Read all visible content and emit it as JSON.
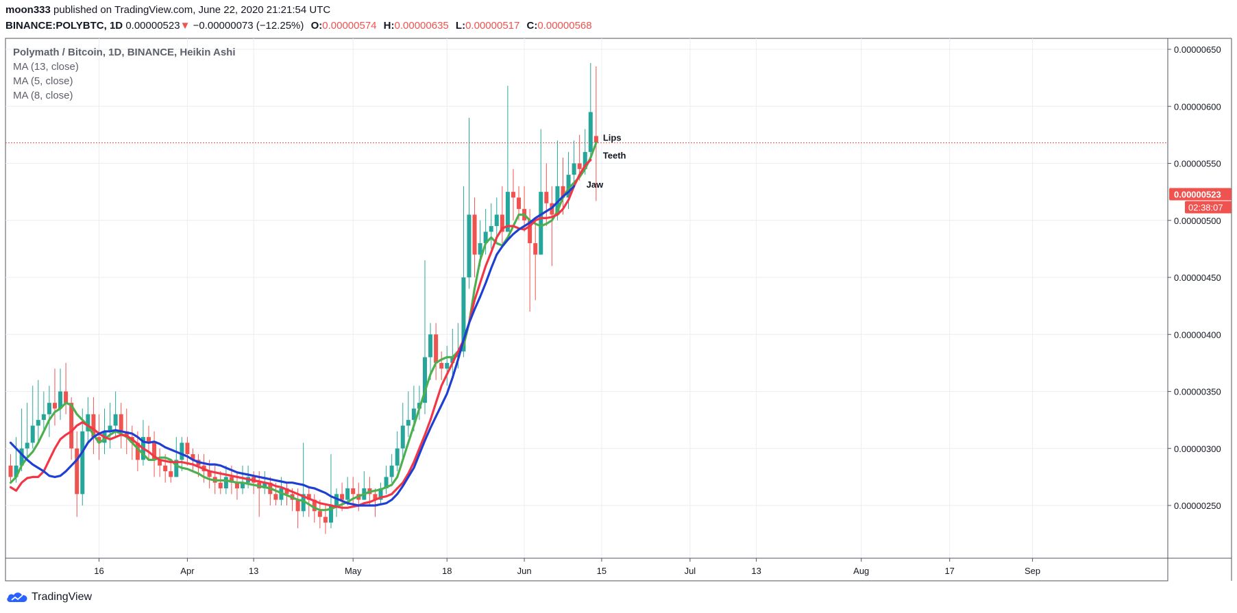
{
  "header": {
    "author": "moon333",
    "published": " published on TradingView.com, June 22, 2020 21:21:54 UTC",
    "symbol": "BINANCE:POLYBTC, 1D",
    "last": "0.00000523",
    "arrow": "▼",
    "change": "−0.00000073 (−12.25%)",
    "o_label": "O:",
    "o": "0.00000574",
    "h_label": "H:",
    "h": "0.00000635",
    "l_label": "L:",
    "l": "0.00000517",
    "c_label": "C:",
    "c": "0.00000568"
  },
  "legend": {
    "main": "Polymath / Bitcoin, 1D, BINANCE, Heikin Ashi",
    "ma13": "MA (13, close)",
    "ma5": "MA (5, close)",
    "ma8": "MA (8, close)"
  },
  "branding": "TradingView",
  "colors": {
    "up": "#26a69a",
    "down": "#ef5350",
    "lips": "#4caf50",
    "teeth": "#f23645",
    "jaw": "#1e3fd1",
    "grid": "#e9eef2",
    "axis": "#50535e"
  },
  "chart_data": {
    "type": "candlestick",
    "style": "Heikin Ashi",
    "title": "Polymath / Bitcoin, 1D, BINANCE, Heikin Ashi",
    "y_range": [
      2e-06,
      6.6e-06
    ],
    "y_ticks": [
      "0.00000650",
      "0.00000600",
      "0.00000550",
      "0.00000500",
      "0.00000450",
      "0.00000400",
      "0.00000350",
      "0.00000300",
      "0.00000250"
    ],
    "y_tick_values": [
      6.5,
      6.0,
      5.5,
      5.0,
      4.5,
      4.0,
      3.5,
      3.0,
      2.5
    ],
    "x_ticks": [
      {
        "label": "16",
        "day": 16
      },
      {
        "label": "Apr",
        "day": 32
      },
      {
        "label": "13",
        "day": 44
      },
      {
        "label": "May",
        "day": 62
      },
      {
        "label": "18",
        "day": 79
      },
      {
        "label": "Jun",
        "day": 93
      },
      {
        "label": "15",
        "day": 107
      },
      {
        "label": "Jul",
        "day": 123
      },
      {
        "label": "13",
        "day": 135
      },
      {
        "label": "Aug",
        "day": 154
      },
      {
        "label": "17",
        "day": 170
      },
      {
        "label": "Sep",
        "day": 185
      }
    ],
    "price_line": 5.68,
    "last_price_label": "0.00000523",
    "countdown_label": "02:38:07",
    "unit": "1e-6 BTC",
    "candles": [
      [
        2.85,
        2.75,
        2.95,
        2.7
      ],
      [
        2.75,
        2.85,
        3.1,
        2.7
      ],
      [
        2.85,
        3.0,
        3.35,
        2.8
      ],
      [
        3.0,
        3.05,
        3.4,
        2.9
      ],
      [
        3.05,
        3.2,
        3.55,
        3.0
      ],
      [
        3.2,
        3.25,
        3.6,
        3.05
      ],
      [
        3.25,
        3.3,
        3.5,
        3.15
      ],
      [
        3.3,
        3.4,
        3.55,
        3.1
      ],
      [
        3.4,
        3.35,
        3.7,
        3.2
      ],
      [
        3.35,
        3.5,
        3.7,
        3.25
      ],
      [
        3.5,
        3.4,
        3.75,
        3.3
      ],
      [
        3.4,
        3.0,
        3.45,
        2.9
      ],
      [
        3.0,
        2.6,
        3.15,
        2.4
      ],
      [
        2.6,
        3.15,
        3.35,
        2.5
      ],
      [
        3.15,
        3.3,
        3.45,
        3.05
      ],
      [
        3.3,
        3.1,
        3.45,
        2.95
      ],
      [
        3.1,
        3.05,
        3.3,
        2.9
      ],
      [
        3.05,
        3.15,
        3.35,
        2.95
      ],
      [
        3.15,
        3.2,
        3.4,
        3.0
      ],
      [
        3.2,
        3.3,
        3.5,
        3.1
      ],
      [
        3.3,
        3.15,
        3.4,
        3.0
      ],
      [
        3.15,
        3.1,
        3.35,
        2.95
      ],
      [
        3.1,
        3.05,
        3.2,
        2.9
      ],
      [
        3.05,
        2.9,
        3.15,
        2.8
      ],
      [
        2.9,
        3.1,
        3.25,
        2.85
      ],
      [
        3.1,
        3.05,
        3.2,
        2.9
      ],
      [
        3.05,
        2.9,
        3.15,
        2.75
      ],
      [
        2.9,
        2.85,
        3.0,
        2.75
      ],
      [
        2.85,
        2.8,
        2.95,
        2.7
      ],
      [
        2.8,
        2.75,
        2.9,
        2.7
      ],
      [
        2.75,
        2.9,
        3.1,
        2.75
      ],
      [
        2.9,
        3.05,
        3.1,
        2.8
      ],
      [
        3.05,
        2.95,
        3.1,
        2.85
      ],
      [
        2.95,
        2.9,
        3.0,
        2.8
      ],
      [
        2.9,
        2.85,
        2.95,
        2.75
      ],
      [
        2.85,
        2.8,
        2.95,
        2.7
      ],
      [
        2.8,
        2.75,
        2.9,
        2.65
      ],
      [
        2.75,
        2.7,
        2.85,
        2.6
      ],
      [
        2.7,
        2.65,
        2.8,
        2.6
      ],
      [
        2.65,
        2.75,
        2.85,
        2.6
      ],
      [
        2.75,
        2.7,
        2.85,
        2.6
      ],
      [
        2.7,
        2.65,
        2.8,
        2.55
      ],
      [
        2.65,
        2.7,
        2.85,
        2.6
      ],
      [
        2.7,
        2.75,
        2.85,
        2.65
      ],
      [
        2.75,
        2.7,
        2.8,
        2.6
      ],
      [
        2.7,
        2.65,
        2.8,
        2.4
      ],
      [
        2.65,
        2.7,
        2.8,
        2.6
      ],
      [
        2.7,
        2.6,
        2.75,
        2.5
      ],
      [
        2.6,
        2.55,
        2.7,
        2.5
      ],
      [
        2.55,
        2.65,
        2.75,
        2.5
      ],
      [
        2.65,
        2.6,
        2.7,
        2.5
      ],
      [
        2.6,
        2.55,
        2.65,
        2.45
      ],
      [
        2.55,
        2.45,
        2.65,
        2.3
      ],
      [
        2.45,
        2.6,
        3.05,
        2.4
      ],
      [
        2.6,
        2.55,
        2.65,
        2.4
      ],
      [
        2.55,
        2.45,
        2.6,
        2.35
      ],
      [
        2.45,
        2.4,
        2.55,
        2.3
      ],
      [
        2.4,
        2.35,
        2.5,
        2.25
      ],
      [
        2.35,
        2.5,
        2.95,
        2.3
      ],
      [
        2.5,
        2.6,
        2.65,
        2.4
      ],
      [
        2.6,
        2.55,
        2.7,
        2.45
      ],
      [
        2.55,
        2.65,
        2.75,
        2.5
      ],
      [
        2.65,
        2.6,
        2.75,
        2.5
      ],
      [
        2.6,
        2.55,
        2.7,
        2.45
      ],
      [
        2.55,
        2.65,
        2.8,
        2.55
      ],
      [
        2.65,
        2.6,
        2.75,
        2.5
      ],
      [
        2.6,
        2.55,
        2.65,
        2.4
      ],
      [
        2.55,
        2.65,
        2.7,
        2.5
      ],
      [
        2.65,
        2.75,
        2.85,
        2.6
      ],
      [
        2.75,
        2.85,
        2.95,
        2.7
      ],
      [
        2.85,
        3.0,
        3.15,
        2.8
      ],
      [
        3.0,
        3.2,
        3.4,
        2.9
      ],
      [
        3.2,
        3.25,
        3.5,
        3.1
      ],
      [
        3.25,
        3.35,
        3.55,
        3.15
      ],
      [
        3.35,
        3.4,
        3.55,
        3.25
      ],
      [
        3.4,
        3.8,
        4.65,
        3.3
      ],
      [
        3.8,
        4.0,
        4.1,
        3.6
      ],
      [
        4.0,
        3.75,
        4.1,
        3.6
      ],
      [
        3.75,
        3.7,
        3.85,
        3.6
      ],
      [
        3.7,
        3.75,
        3.9,
        3.55
      ],
      [
        3.75,
        3.8,
        4.05,
        3.65
      ],
      [
        3.8,
        3.85,
        4.1,
        3.7
      ],
      [
        3.85,
        4.5,
        5.3,
        3.8
      ],
      [
        4.5,
        5.05,
        5.9,
        4.4
      ],
      [
        5.05,
        4.7,
        5.2,
        4.5
      ],
      [
        4.7,
        4.8,
        5.0,
        4.6
      ],
      [
        4.8,
        4.9,
        5.1,
        4.7
      ],
      [
        4.9,
        4.95,
        5.15,
        4.75
      ],
      [
        4.95,
        5.05,
        5.2,
        4.8
      ],
      [
        5.05,
        4.9,
        5.3,
        4.8
      ],
      [
        4.9,
        5.25,
        6.18,
        4.9
      ],
      [
        5.25,
        5.2,
        5.45,
        5.0
      ],
      [
        5.2,
        5.1,
        5.3,
        5.0
      ],
      [
        5.1,
        5.0,
        5.3,
        4.9
      ],
      [
        5.0,
        4.8,
        5.1,
        4.2
      ],
      [
        4.8,
        4.7,
        5.0,
        4.3
      ],
      [
        4.7,
        5.25,
        5.8,
        4.7
      ],
      [
        5.25,
        5.15,
        5.5,
        4.95
      ],
      [
        5.15,
        5.05,
        5.3,
        4.6
      ],
      [
        5.05,
        5.3,
        5.7,
        5.0
      ],
      [
        5.3,
        5.2,
        5.55,
        5.05
      ],
      [
        5.2,
        5.4,
        5.6,
        5.1
      ],
      [
        5.4,
        5.5,
        5.7,
        5.3
      ],
      [
        5.5,
        5.45,
        5.75,
        5.35
      ],
      [
        5.45,
        5.6,
        5.8,
        5.4
      ],
      [
        5.6,
        5.95,
        6.38,
        5.55
      ],
      [
        5.74,
        5.68,
        6.35,
        5.17
      ]
    ],
    "series": [
      {
        "name": "Lips",
        "ma": "MA (5, close)",
        "color": "#4caf50",
        "values": [
          2.7,
          2.75,
          2.85,
          2.92,
          2.97,
          3.05,
          3.15,
          3.25,
          3.32,
          3.35,
          3.4,
          3.38,
          3.3,
          3.25,
          3.2,
          3.12,
          3.05,
          3.08,
          3.12,
          3.15,
          3.13,
          3.1,
          3.05,
          3.0,
          2.95,
          2.9,
          2.9,
          2.92,
          2.92,
          2.9,
          2.85,
          2.83,
          2.82,
          2.8,
          2.78,
          2.75,
          2.73,
          2.72,
          2.72,
          2.72,
          2.71,
          2.7,
          2.7,
          2.69,
          2.68,
          2.67,
          2.66,
          2.65,
          2.63,
          2.61,
          2.59,
          2.57,
          2.55,
          2.54,
          2.51,
          2.48,
          2.46,
          2.46,
          2.47,
          2.49,
          2.51,
          2.53,
          2.56,
          2.58,
          2.6,
          2.62,
          2.63,
          2.64,
          2.66,
          2.68,
          2.75,
          2.9,
          3.05,
          3.2,
          3.35,
          3.5,
          3.65,
          3.75,
          3.78,
          3.8,
          3.8,
          3.85,
          3.9,
          4.1,
          4.4,
          4.65,
          4.8,
          4.85,
          4.8,
          4.78,
          4.85,
          4.95,
          5.05,
          5.05,
          5.0,
          4.97,
          4.95,
          4.97,
          5.0,
          5.08,
          5.2,
          5.28,
          5.33,
          5.38,
          5.45,
          5.55,
          5.68
        ]
      },
      {
        "name": "Teeth",
        "ma": "MA (8, close)",
        "color": "#f23645",
        "values": [
          2.66,
          2.63,
          2.7,
          2.74,
          2.75,
          2.75,
          2.8,
          2.9,
          3.0,
          3.08,
          3.12,
          3.15,
          3.2,
          3.23,
          3.2,
          3.17,
          3.13,
          3.1,
          3.08,
          3.1,
          3.12,
          3.11,
          3.08,
          3.04,
          3.0,
          2.97,
          2.93,
          2.9,
          2.89,
          2.88,
          2.88,
          2.88,
          2.87,
          2.86,
          2.84,
          2.82,
          2.8,
          2.79,
          2.78,
          2.77,
          2.76,
          2.75,
          2.74,
          2.73,
          2.72,
          2.71,
          2.7,
          2.69,
          2.67,
          2.66,
          2.64,
          2.62,
          2.6,
          2.58,
          2.56,
          2.54,
          2.52,
          2.51,
          2.5,
          2.49,
          2.48,
          2.48,
          2.49,
          2.5,
          2.52,
          2.53,
          2.55,
          2.57,
          2.58,
          2.6,
          2.65,
          2.7,
          2.78,
          2.88,
          3.0,
          3.12,
          3.25,
          3.4,
          3.55,
          3.65,
          3.75,
          3.85,
          3.95,
          4.1,
          4.3,
          4.45,
          4.6,
          4.72,
          4.85,
          4.93,
          4.95,
          4.95,
          4.93,
          4.92,
          4.95,
          5.0,
          5.02,
          5.02,
          5.03,
          5.05,
          5.1,
          5.18,
          5.3,
          5.4,
          5.48,
          5.53
        ]
      },
      {
        "name": "Jaw",
        "ma": "MA (13, close)",
        "color": "#1e3fd1",
        "values": [
          3.05,
          3.0,
          2.95,
          2.9,
          2.86,
          2.83,
          2.8,
          2.76,
          2.75,
          2.76,
          2.8,
          2.85,
          2.9,
          2.97,
          3.05,
          3.1,
          3.13,
          3.15,
          3.15,
          3.16,
          3.15,
          3.14,
          3.13,
          3.1,
          3.06,
          3.05,
          3.06,
          3.04,
          3.01,
          2.99,
          2.97,
          2.95,
          2.93,
          2.9,
          2.88,
          2.87,
          2.86,
          2.86,
          2.85,
          2.83,
          2.81,
          2.79,
          2.78,
          2.77,
          2.76,
          2.75,
          2.74,
          2.73,
          2.72,
          2.71,
          2.7,
          2.7,
          2.69,
          2.68,
          2.66,
          2.65,
          2.63,
          2.61,
          2.58,
          2.56,
          2.54,
          2.52,
          2.51,
          2.5,
          2.5,
          2.5,
          2.5,
          2.51,
          2.52,
          2.55,
          2.6,
          2.67,
          2.75,
          2.83,
          2.95,
          3.07,
          3.18,
          3.28,
          3.38,
          3.48,
          3.62,
          3.78,
          3.95,
          4.1,
          4.22,
          4.33,
          4.45,
          4.58,
          4.7,
          4.77,
          4.83,
          4.88,
          4.92,
          4.95,
          4.98,
          5.02,
          5.05,
          5.08,
          5.11,
          5.16,
          5.21,
          5.25,
          5.3
        ]
      }
    ],
    "annotations": [
      {
        "text": "Lips",
        "near_series": "Lips"
      },
      {
        "text": "Teeth",
        "near_series": "Teeth"
      },
      {
        "text": "Jaw",
        "near_series": "Jaw"
      }
    ]
  }
}
